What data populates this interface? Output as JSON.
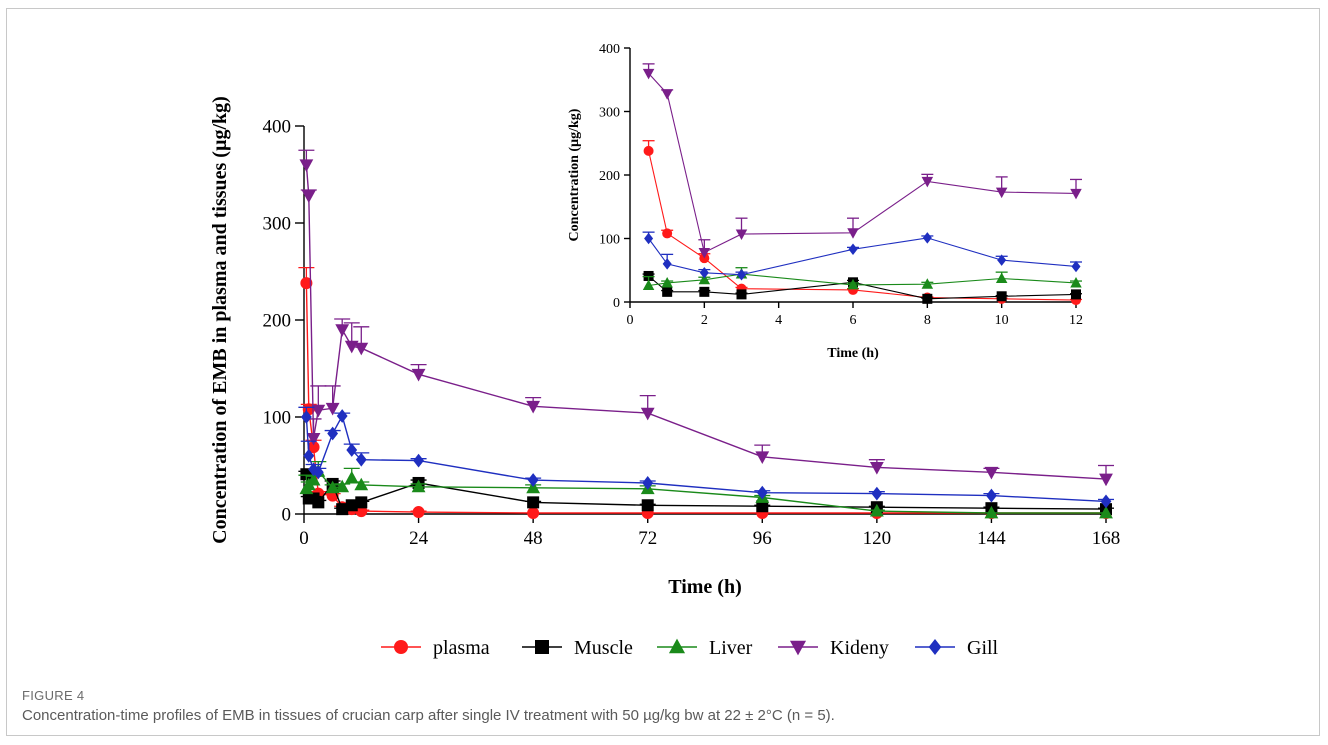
{
  "figure": {
    "label": "FIGURE 4",
    "caption": "Concentration-time profiles of EMB in tissues of crucian carp after single IV treatment with 50 µg/kg bw at 22 ± 2°C (n = 5)."
  },
  "colors": {
    "plasma": "#ff1a1a",
    "Muscle": "#000000",
    "Liver": "#1a8a1a",
    "Kideny": "#7a1f8a",
    "Gill": "#1f2fc0"
  },
  "chart_data": [
    {
      "type": "line",
      "title": "",
      "xlabel": "Time (h)",
      "ylabel": "Concentration of EMB in plasma and tissues (µg/kg)",
      "xlim": [
        0,
        168
      ],
      "ylim": [
        0,
        400
      ],
      "xticks": [
        0,
        24,
        48,
        72,
        96,
        120,
        144,
        168
      ],
      "yticks": [
        0,
        100,
        200,
        300,
        400
      ],
      "legend": "bottom",
      "series": [
        {
          "name": "plasma",
          "marker": "circle",
          "x": [
            0.5,
            1,
            2,
            3,
            6,
            8,
            10,
            12,
            24,
            48,
            72,
            96,
            120,
            144,
            168
          ],
          "y": [
            238,
            108,
            69,
            21,
            19,
            7,
            5,
            3,
            2,
            1,
            1,
            1,
            1,
            1,
            1
          ],
          "err": [
            16,
            5,
            7,
            2,
            2,
            1,
            1,
            1,
            1,
            0,
            0,
            0,
            0,
            0,
            0
          ]
        },
        {
          "name": "Muscle",
          "marker": "square",
          "x": [
            0.5,
            1,
            2,
            3,
            6,
            8,
            10,
            12,
            24,
            48,
            72,
            96,
            120,
            144,
            168
          ],
          "y": [
            41,
            16,
            16,
            12,
            31,
            5,
            9,
            12,
            32,
            12,
            9,
            8,
            7,
            6,
            5
          ],
          "err": [
            3,
            2,
            2,
            2,
            3,
            1,
            1,
            1,
            3,
            1,
            1,
            1,
            1,
            1,
            1
          ]
        },
        {
          "name": "Liver",
          "marker": "triangle-up",
          "x": [
            0.5,
            1,
            2,
            3,
            6,
            8,
            10,
            12,
            24,
            48,
            72,
            96,
            120,
            144,
            168
          ],
          "y": [
            26,
            30,
            35,
            44,
            27,
            28,
            37,
            30,
            28,
            27,
            26,
            17,
            3,
            1,
            1
          ],
          "err": [
            14,
            3,
            4,
            10,
            3,
            3,
            10,
            3,
            3,
            3,
            3,
            2,
            1,
            0,
            0
          ]
        },
        {
          "name": "Kideny",
          "marker": "triangle-down",
          "x": [
            0.5,
            1,
            2,
            3,
            6,
            8,
            10,
            12,
            24,
            48,
            72,
            96,
            120,
            144,
            168
          ],
          "y": [
            360,
            328,
            78,
            107,
            109,
            190,
            173,
            171,
            144,
            111,
            104,
            59,
            48,
            43,
            36
          ],
          "err": [
            15,
            6,
            20,
            25,
            23,
            11,
            24,
            22,
            10,
            9,
            18,
            12,
            8,
            4,
            14
          ]
        },
        {
          "name": "Gill",
          "marker": "diamond",
          "x": [
            0.5,
            1,
            2,
            3,
            6,
            8,
            10,
            12,
            24,
            48,
            72,
            96,
            120,
            144,
            168
          ],
          "y": [
            100,
            60,
            46,
            43,
            83,
            101,
            66,
            56,
            55,
            35,
            32,
            22,
            21,
            19,
            13
          ],
          "err": [
            10,
            15,
            5,
            4,
            3,
            3,
            6,
            7,
            2,
            2,
            2,
            2,
            2,
            2,
            2
          ]
        }
      ]
    },
    {
      "type": "line",
      "title": "",
      "xlabel": "Time (h)",
      "ylabel": "Concentration (µg/kg)",
      "xlim": [
        0,
        12
      ],
      "ylim": [
        0,
        400
      ],
      "xticks": [
        0,
        2,
        4,
        6,
        8,
        10,
        12
      ],
      "yticks": [
        0,
        100,
        200,
        300,
        400
      ],
      "series": [
        {
          "name": "plasma",
          "marker": "circle",
          "x": [
            0.5,
            1,
            2,
            3,
            6,
            8,
            10,
            12
          ],
          "y": [
            238,
            108,
            69,
            21,
            19,
            7,
            5,
            3
          ],
          "err": [
            16,
            5,
            7,
            2,
            2,
            1,
            1,
            1
          ]
        },
        {
          "name": "Muscle",
          "marker": "square",
          "x": [
            0.5,
            1,
            2,
            3,
            6,
            8,
            10,
            12
          ],
          "y": [
            41,
            16,
            16,
            12,
            31,
            5,
            9,
            12
          ],
          "err": [
            3,
            2,
            2,
            2,
            3,
            1,
            1,
            1
          ]
        },
        {
          "name": "Liver",
          "marker": "triangle-up",
          "x": [
            0.5,
            1,
            2,
            3,
            6,
            8,
            10,
            12
          ],
          "y": [
            26,
            30,
            35,
            44,
            27,
            28,
            37,
            30
          ],
          "err": [
            14,
            3,
            4,
            10,
            3,
            3,
            10,
            3
          ]
        },
        {
          "name": "Kideny",
          "marker": "triangle-down",
          "x": [
            0.5,
            1,
            2,
            3,
            6,
            8,
            10,
            12
          ],
          "y": [
            360,
            328,
            78,
            107,
            109,
            190,
            173,
            171
          ],
          "err": [
            15,
            6,
            20,
            25,
            23,
            11,
            24,
            22
          ]
        },
        {
          "name": "Gill",
          "marker": "diamond",
          "x": [
            0.5,
            1,
            2,
            3,
            6,
            8,
            10,
            12
          ],
          "y": [
            100,
            60,
            46,
            43,
            83,
            101,
            66,
            56
          ],
          "err": [
            10,
            15,
            5,
            4,
            3,
            3,
            6,
            7
          ]
        }
      ]
    }
  ]
}
